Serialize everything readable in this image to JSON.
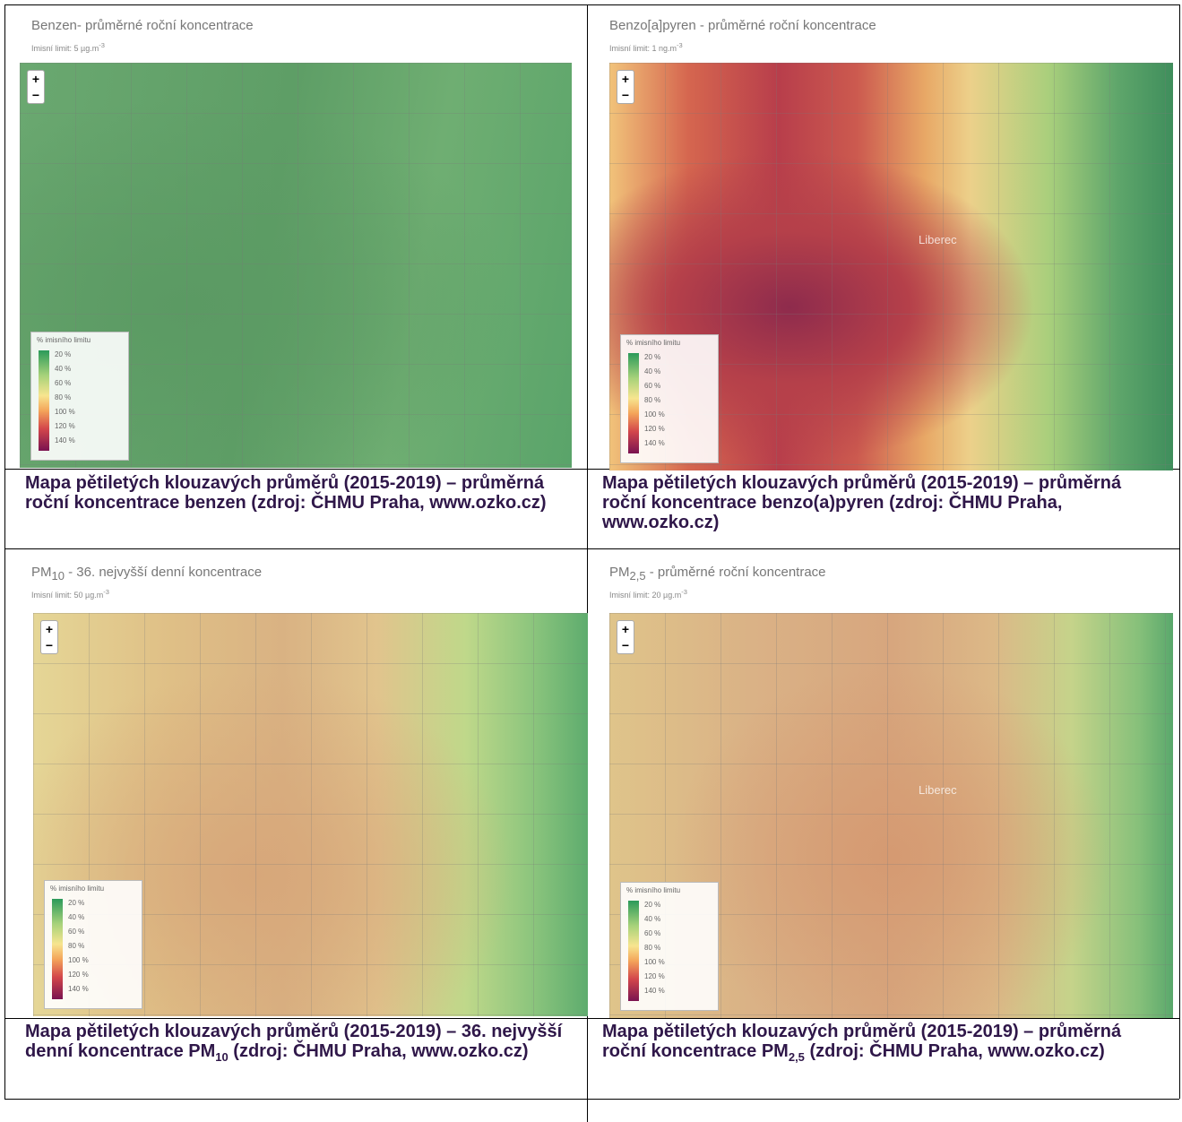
{
  "legend": {
    "title": "% imisního limitu",
    "labels": [
      "20 %",
      "40 %",
      "60 %",
      "80 %",
      "100 %",
      "120 %",
      "140 %"
    ]
  },
  "zoom": {
    "in": "+",
    "out": "−"
  },
  "panels": [
    {
      "title": {
        "before": "Benzen- průměrné roční koncentrace"
      },
      "limit": {
        "text": "Imisní limit: 5 µg.m",
        "sup": "-3"
      },
      "caption": {
        "before": "Mapa pětiletých klouzavých průměrů (2015-2019) – průměrná roční koncentrace benzen (zdroj: ČHMU Praha, www.ozko.cz)"
      }
    },
    {
      "title": {
        "before": "Benzo[a]pyren - průměrné roční koncentrace"
      },
      "limit": {
        "text": "Imisní limit: 1 ng.m",
        "sup": "-3"
      },
      "place": "Liberec",
      "caption": {
        "before": "Mapa pětiletých klouzavých průměrů (2015-2019) – průměrná roční koncentrace benzo(a)pyren (zdroj: ČHMU Praha, www.ozko.cz)"
      }
    },
    {
      "title": {
        "before": "PM",
        "sub": "10",
        "after": " - 36. nejvyšší denní koncentrace"
      },
      "limit": {
        "text": "Imisní limit: 50 µg.m",
        "sup": "-3"
      },
      "caption": {
        "before": "Mapa pětiletých klouzavých průměrů (2015-2019) – 36. nejvyšší denní koncentrace PM",
        "sub": "10",
        "after": " (zdroj: ČHMU Praha, www.ozko.cz)"
      }
    },
    {
      "title": {
        "before": "PM",
        "sub": "2,5",
        "after": " - průměrné roční koncentrace"
      },
      "limit": {
        "text": "Imisní limit: 20 µg.m",
        "sup": "-3"
      },
      "place": "Liberec",
      "caption": {
        "before": "Mapa pětiletých klouzavých průměrů (2015-2019) – průměrná roční koncentrace PM",
        "sub": "2,5",
        "after": " (zdroj: ČHMU Praha, www.ozko.cz)"
      }
    }
  ]
}
